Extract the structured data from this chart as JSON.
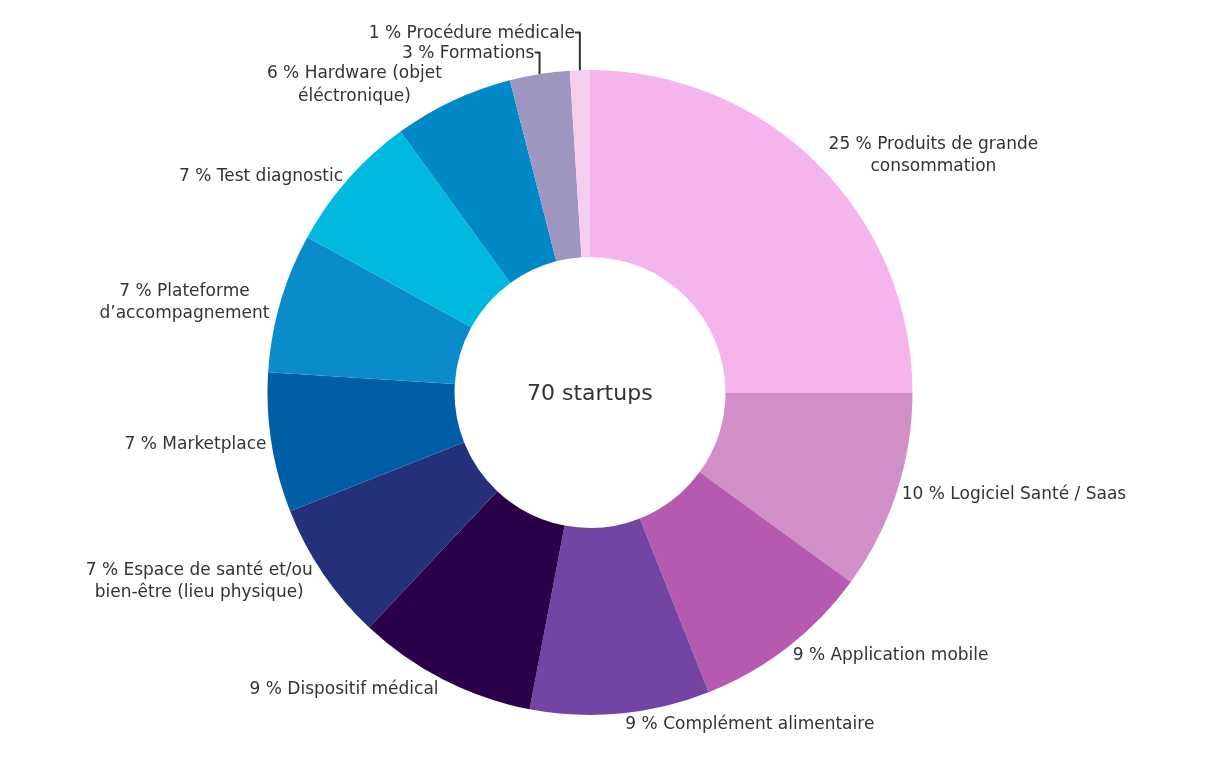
{
  "chart_data": {
    "type": "donut",
    "categories": [
      "Produits de grande consommation",
      "Logiciel Santé / Saas",
      "Application mobile",
      "Complément alimentaire",
      "Dispositif médical",
      "Espace de santé et/ou bien-être (lieu physique)",
      "Marketplace",
      "Plateforme d’accompagnement",
      "Test diagnostic",
      "Hardware (objet éléctronique)",
      "Formations",
      "Procédure médicale"
    ],
    "values": [
      25,
      10,
      9,
      9,
      9,
      7,
      7,
      7,
      7,
      6,
      3,
      1
    ],
    "value_labels": [
      "25 %",
      "10 %",
      "9 %",
      "9 %",
      "9 %",
      "7 %",
      "7 %",
      "7 %",
      "7 %",
      "6 %",
      "3 %",
      "1 %"
    ],
    "colors": [
      "#f3b5ec",
      "#d18fc8",
      "#b55aae",
      "#7245a5",
      "#2b004a",
      "#24307a",
      "#005ea6",
      "#0a8ccc",
      "#00b9df",
      "#0089c6",
      "#9e95c0",
      "#f5cdef"
    ],
    "annotations": [
      "70 startups"
    ]
  }
}
